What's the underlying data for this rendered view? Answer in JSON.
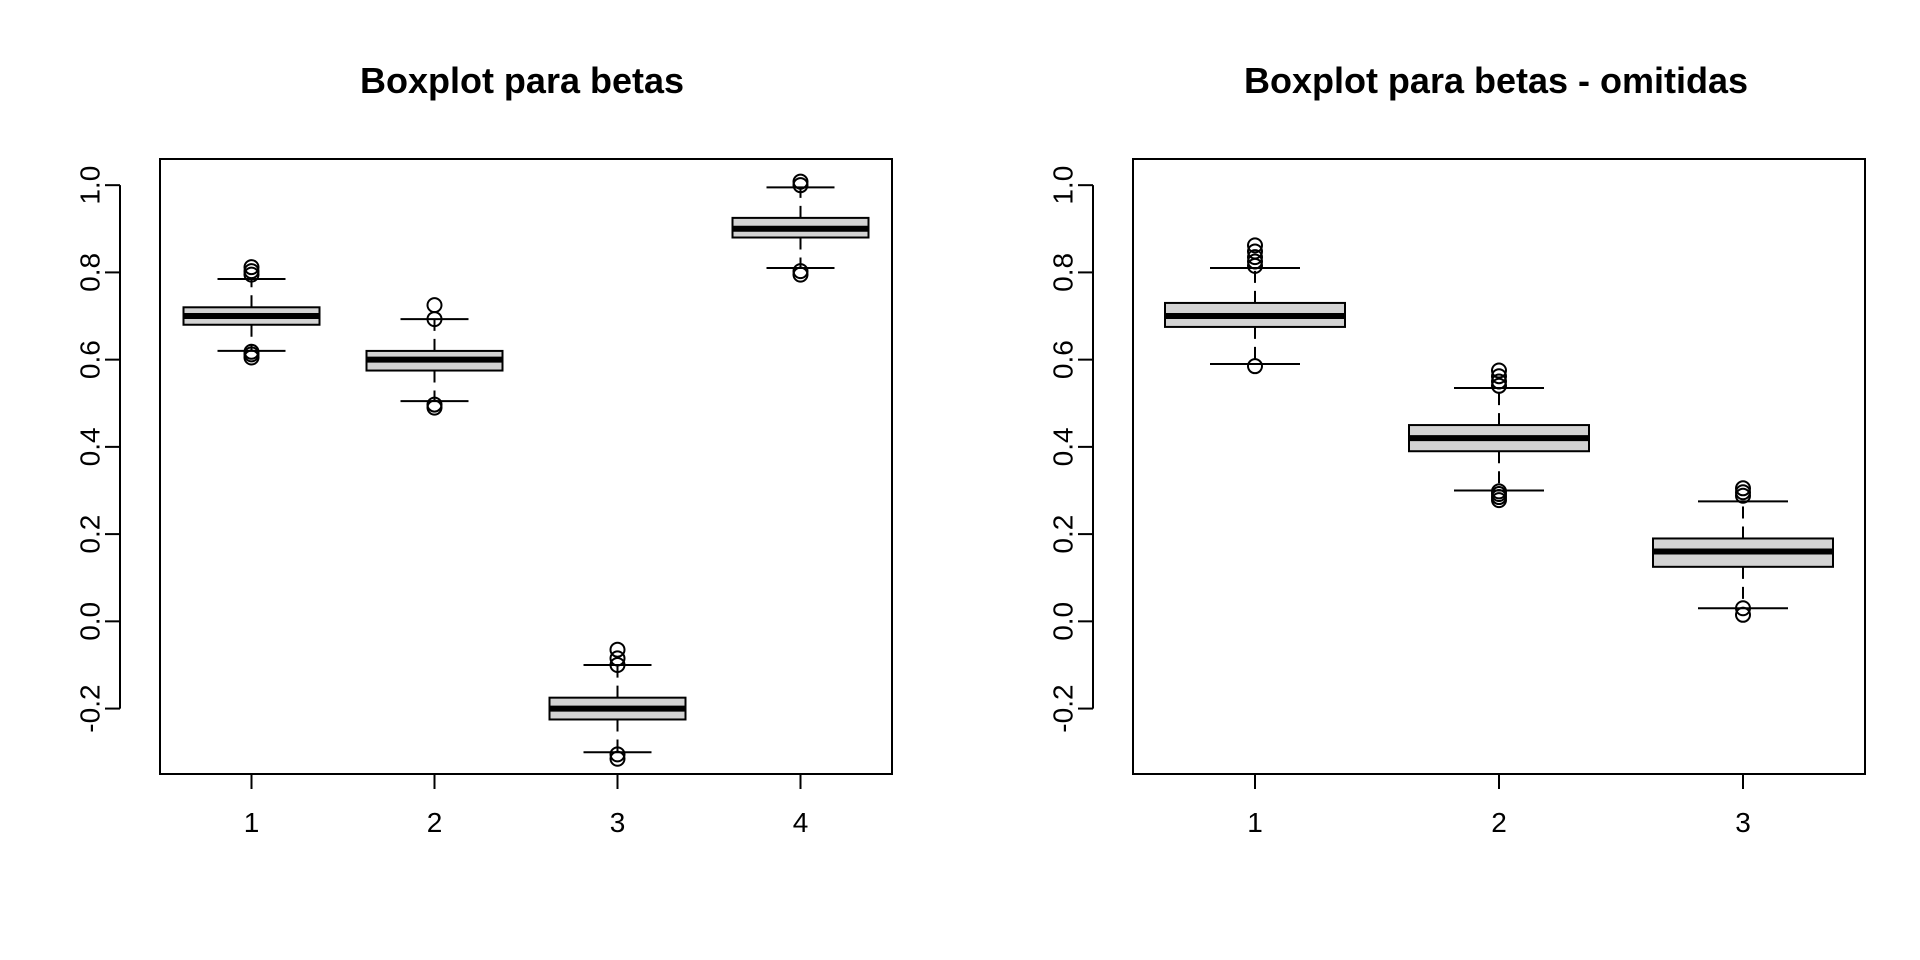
{
  "figure": {
    "background": "#ffffff"
  },
  "chart_data": [
    {
      "type": "boxplot",
      "title": "Boxplot para betas",
      "xlabel": "",
      "ylabel": "",
      "ylim": [
        -0.35,
        1.06
      ],
      "yticks": [
        -0.2,
        0.0,
        0.2,
        0.4,
        0.6,
        0.8,
        1.0
      ],
      "ytick_labels": [
        "-0.2",
        "0.0",
        "0.2",
        "0.4",
        "0.6",
        "0.8",
        "1.0"
      ],
      "categories": [
        "1",
        "2",
        "3",
        "4"
      ],
      "box_fill": "#d3d3d3",
      "series": [
        {
          "category": "1",
          "whisker_low": 0.62,
          "q1": 0.68,
          "median": 0.7,
          "q3": 0.72,
          "whisker_high": 0.785,
          "outliers": [
            0.605,
            0.612,
            0.618,
            0.795,
            0.803,
            0.812
          ]
        },
        {
          "category": "2",
          "whisker_low": 0.505,
          "q1": 0.575,
          "median": 0.6,
          "q3": 0.62,
          "whisker_high": 0.693,
          "outliers": [
            0.49,
            0.497,
            0.693,
            0.725
          ]
        },
        {
          "category": "3",
          "whisker_low": -0.3,
          "q1": -0.225,
          "median": -0.2,
          "q3": -0.175,
          "whisker_high": -0.1,
          "outliers": [
            -0.315,
            -0.305,
            -0.1,
            -0.085,
            -0.065
          ]
        },
        {
          "category": "4",
          "whisker_low": 0.81,
          "q1": 0.88,
          "median": 0.9,
          "q3": 0.925,
          "whisker_high": 0.995,
          "outliers": [
            0.795,
            0.803,
            1.0,
            1.008
          ]
        }
      ]
    },
    {
      "type": "boxplot",
      "title": "Boxplot para betas - omitidas",
      "xlabel": "",
      "ylabel": "",
      "ylim": [
        -0.35,
        1.06
      ],
      "yticks": [
        -0.2,
        0.0,
        0.2,
        0.4,
        0.6,
        0.8,
        1.0
      ],
      "ytick_labels": [
        "-0.2",
        "0.0",
        "0.2",
        "0.4",
        "0.6",
        "0.8",
        "1.0"
      ],
      "categories": [
        "1",
        "2",
        "3"
      ],
      "box_fill": "#d3d3d3",
      "series": [
        {
          "category": "1",
          "whisker_low": 0.59,
          "q1": 0.675,
          "median": 0.7,
          "q3": 0.73,
          "whisker_high": 0.81,
          "outliers": [
            0.585,
            0.815,
            0.825,
            0.835,
            0.848,
            0.862
          ]
        },
        {
          "category": "2",
          "whisker_low": 0.3,
          "q1": 0.39,
          "median": 0.42,
          "q3": 0.45,
          "whisker_high": 0.535,
          "outliers": [
            0.278,
            0.285,
            0.292,
            0.298,
            0.54,
            0.55,
            0.562,
            0.575
          ]
        },
        {
          "category": "3",
          "whisker_low": 0.03,
          "q1": 0.125,
          "median": 0.16,
          "q3": 0.19,
          "whisker_high": 0.275,
          "outliers": [
            0.015,
            0.03,
            0.288,
            0.296,
            0.305
          ]
        }
      ]
    }
  ]
}
